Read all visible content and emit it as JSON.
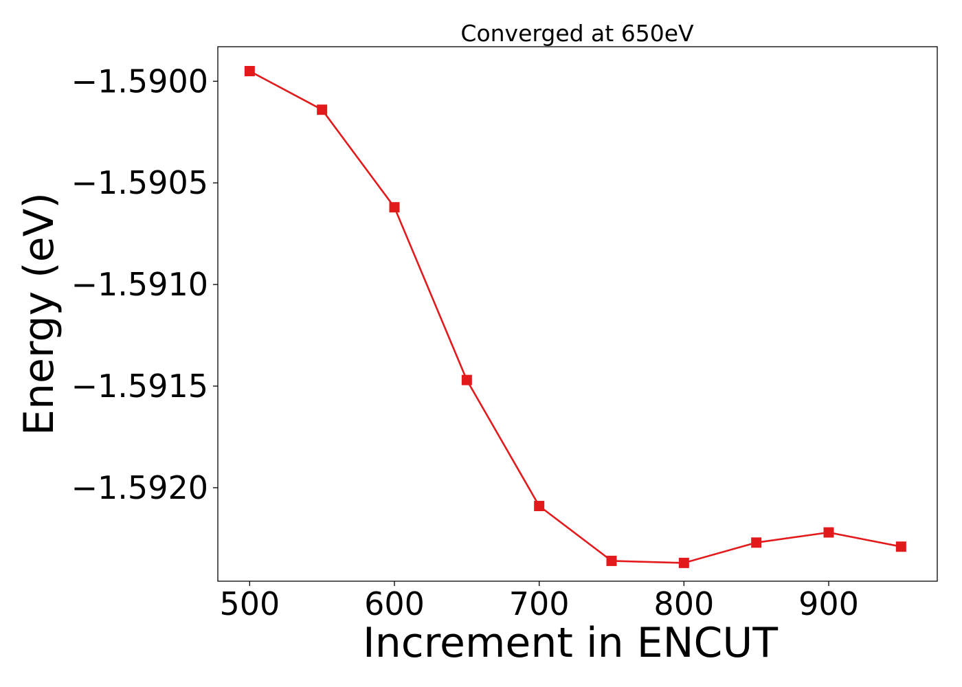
{
  "chart_data": {
    "type": "line",
    "title": "Converged at 650eV",
    "xlabel": "Increment in ENCUT",
    "ylabel": "Energy (eV)",
    "x_ticks": [
      500,
      600,
      700,
      800,
      900
    ],
    "x_tick_labels": [
      "500",
      "600",
      "700",
      "800",
      "900"
    ],
    "y_ticks": [
      -1.59,
      -1.5905,
      -1.591,
      -1.5915,
      -1.592
    ],
    "y_tick_labels": [
      "−1.5900",
      "−1.5905",
      "−1.5910",
      "−1.5915",
      "−1.5920"
    ],
    "xlim": [
      478,
      975
    ],
    "ylim": [
      -1.59246,
      -1.58983
    ],
    "grid": false,
    "marker": "square",
    "series": [
      {
        "color": "#e31a1c",
        "x": [
          500,
          550,
          600,
          650,
          700,
          750,
          800,
          850,
          900,
          950
        ],
        "y": [
          -1.58995,
          -1.59014,
          -1.59062,
          -1.59147,
          -1.59209,
          -1.59236,
          -1.59237,
          -1.59227,
          -1.59222,
          -1.59229
        ]
      }
    ]
  }
}
